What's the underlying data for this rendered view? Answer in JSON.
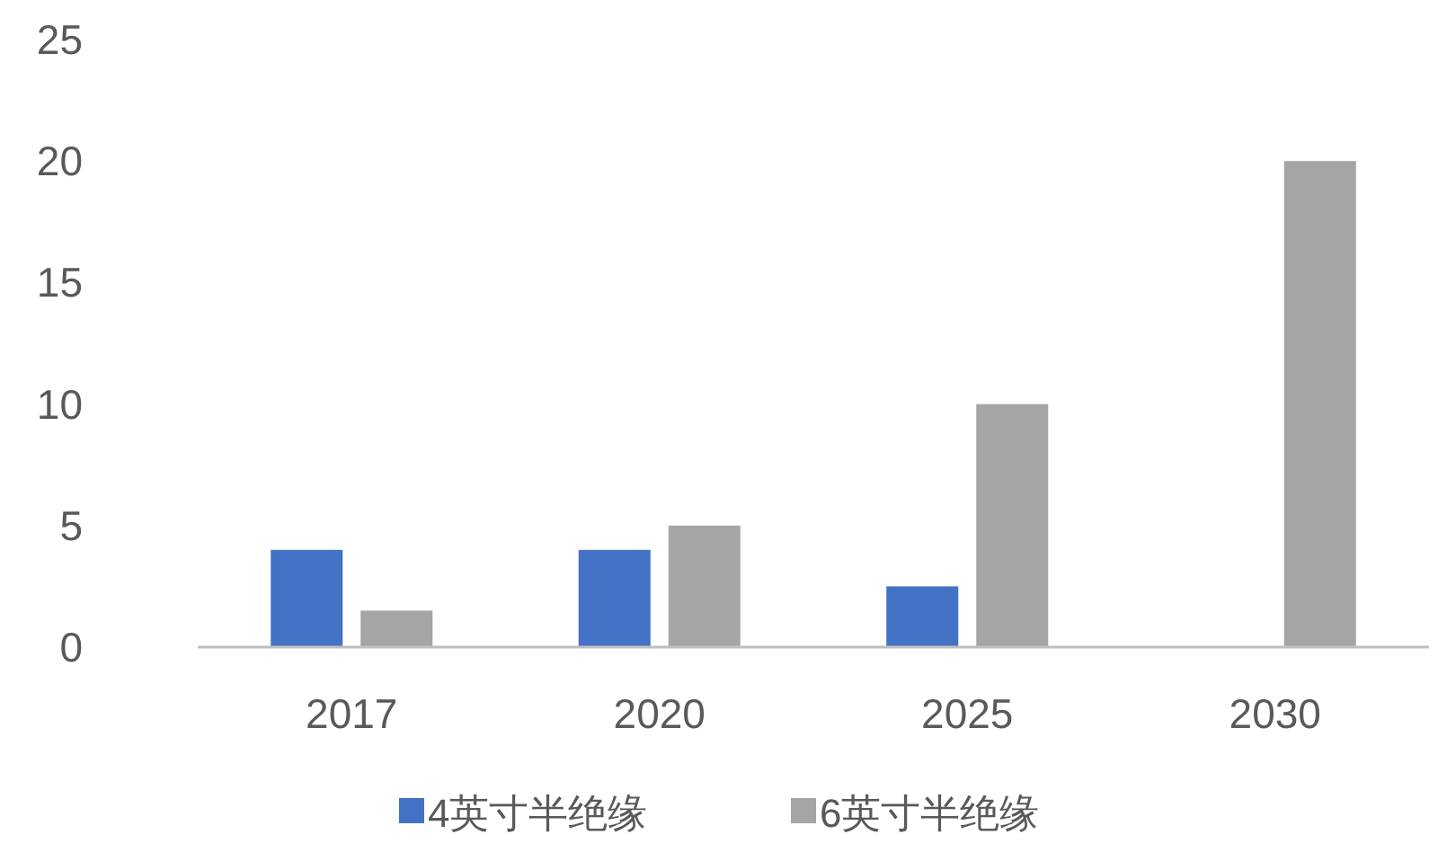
{
  "chart_data": {
    "type": "bar",
    "categories": [
      "2017",
      "2020",
      "2025",
      "2030"
    ],
    "series": [
      {
        "name": "4英寸半绝缘",
        "color": "#4472c4",
        "values": [
          4,
          4,
          2.5,
          null
        ]
      },
      {
        "name": "6英寸半绝缘",
        "color": "#a5a5a5",
        "values": [
          1.5,
          5,
          10,
          20
        ]
      }
    ],
    "ylim": [
      0,
      25
    ],
    "yticks": [
      0,
      5,
      10,
      15,
      20,
      25
    ],
    "grid": false,
    "legend": "bottom"
  }
}
